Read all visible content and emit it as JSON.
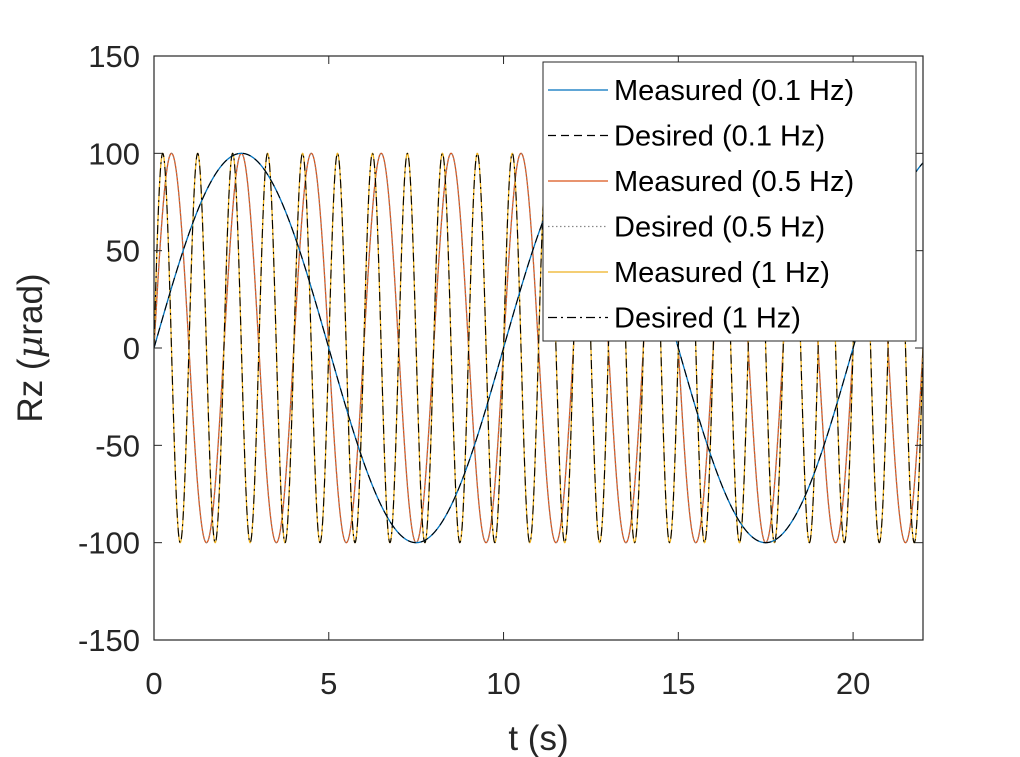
{
  "chart_data": {
    "type": "line",
    "xlabel": "t (s)",
    "ylabel_prefix": "Rz (",
    "ylabel_mu": "μ",
    "ylabel_suffix": "rad)",
    "xlim": [
      0,
      22
    ],
    "ylim": [
      -150,
      150
    ],
    "xticks": [
      0,
      5,
      10,
      15,
      20
    ],
    "yticks": [
      -150,
      -100,
      -50,
      0,
      50,
      100,
      150
    ],
    "xtick_labels": [
      "0",
      "5",
      "10",
      "15",
      "20"
    ],
    "ytick_labels": [
      "-150",
      "-100",
      "-50",
      "0",
      "50",
      "100",
      "150"
    ],
    "grid": false,
    "legend_position": "top-right",
    "series": [
      {
        "name": "Measured (0.1 Hz)",
        "amplitude": 100,
        "frequency_hz": 0.1,
        "color": "#0072BD",
        "dash": "solid"
      },
      {
        "name": "Desired (0.1 Hz)",
        "amplitude": 100,
        "frequency_hz": 0.1,
        "color": "#000000",
        "dash": "dashed"
      },
      {
        "name": "Measured (0.5 Hz)",
        "amplitude": 100,
        "frequency_hz": 0.5,
        "color": "#D95319",
        "dash": "solid"
      },
      {
        "name": "Desired (0.5 Hz)",
        "amplitude": 100,
        "frequency_hz": 0.5,
        "color": "#888888",
        "dash": "dotted"
      },
      {
        "name": "Measured (1 Hz)",
        "amplitude": 100,
        "frequency_hz": 1,
        "color": "#EDB120",
        "dash": "solid"
      },
      {
        "name": "Desired (1 Hz)",
        "amplitude": 100,
        "frequency_hz": 1,
        "color": "#000000",
        "dash": "dashdot"
      }
    ]
  }
}
